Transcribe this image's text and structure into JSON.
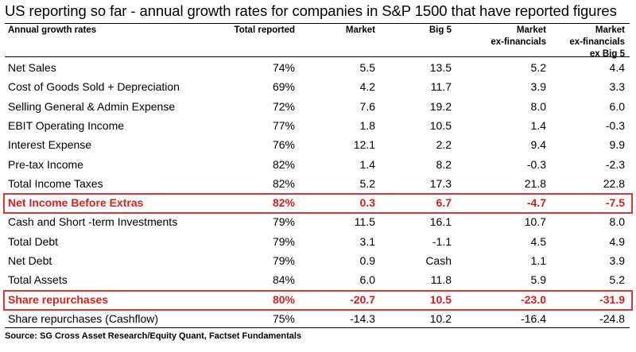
{
  "title": "US reporting so far  - annual growth rates for companies in S&P 1500 that have reported figures",
  "headers": {
    "label": "Annual growth rates",
    "total": "Total reported",
    "market": "Market",
    "big5": "Big 5",
    "exfin_line1": "Market",
    "exfin_line2": "ex-financials",
    "exfinbig5_line1": "Market",
    "exfinbig5_line2": "ex-financials",
    "exfinbig5_line3": "ex Big 5"
  },
  "rows": [
    {
      "label": "Net Sales",
      "total": "74%",
      "market": "5.5",
      "big5": "13.5",
      "exfin": "5.2",
      "exfinbig5": "4.4"
    },
    {
      "label": "Cost of Goods Sold + Depreciation",
      "total": "69%",
      "market": "4.2",
      "big5": "11.7",
      "exfin": "3.9",
      "exfinbig5": "3.3"
    },
    {
      "label": "Selling General & Admin Expense",
      "total": "72%",
      "market": "7.6",
      "big5": "19.2",
      "exfin": "8.0",
      "exfinbig5": "6.0"
    },
    {
      "label": "EBIT Operating Income",
      "total": "77%",
      "market": "1.8",
      "big5": "10.5",
      "exfin": "1.4",
      "exfinbig5": "-0.3"
    },
    {
      "label": "Interest Expense",
      "total": "76%",
      "market": "12.1",
      "big5": "2.2",
      "exfin": "9.4",
      "exfinbig5": "9.9"
    },
    {
      "label": "Pre-tax Income",
      "total": "82%",
      "market": "1.4",
      "big5": "8.2",
      "exfin": "-0.3",
      "exfinbig5": "-2.3"
    },
    {
      "label": "Total Income Taxes",
      "total": "82%",
      "market": "5.2",
      "big5": "17.3",
      "exfin": "21.8",
      "exfinbig5": "22.8"
    },
    {
      "label": "Net Income Before Extras",
      "total": "82%",
      "market": "0.3",
      "big5": "6.7",
      "exfin": "-4.7",
      "exfinbig5": "-7.5"
    },
    {
      "label": "Cash and Short -term Investments",
      "total": "79%",
      "market": "11.5",
      "big5": "16.1",
      "exfin": "10.7",
      "exfinbig5": "8.0"
    },
    {
      "label": "Total Debt",
      "total": "79%",
      "market": "3.1",
      "big5": "-1.1",
      "exfin": "4.5",
      "exfinbig5": "4.9"
    },
    {
      "label": "Net Debt",
      "total": "79%",
      "market": "0.9",
      "big5": "Cash",
      "exfin": "1.1",
      "exfinbig5": "3.9"
    },
    {
      "label": "Total Assets",
      "total": "84%",
      "market": "6.0",
      "big5": "11.8",
      "exfin": "5.9",
      "exfinbig5": "5.2"
    },
    {
      "label": "Share repurchases",
      "total": "80%",
      "market": "-20.7",
      "big5": "10.5",
      "exfin": "-23.0",
      "exfinbig5": "-31.9"
    },
    {
      "label": "Share repurchases (Cashflow)",
      "total": "75%",
      "market": "-14.3",
      "big5": "10.2",
      "exfin": "-16.4",
      "exfinbig5": "-24.8"
    }
  ],
  "highlight_color": "#d81e1e",
  "highlight_border_color": "#e0383a",
  "source": "Source: SG Cross Asset Research/Equity Quant, Factset Fundamentals"
}
